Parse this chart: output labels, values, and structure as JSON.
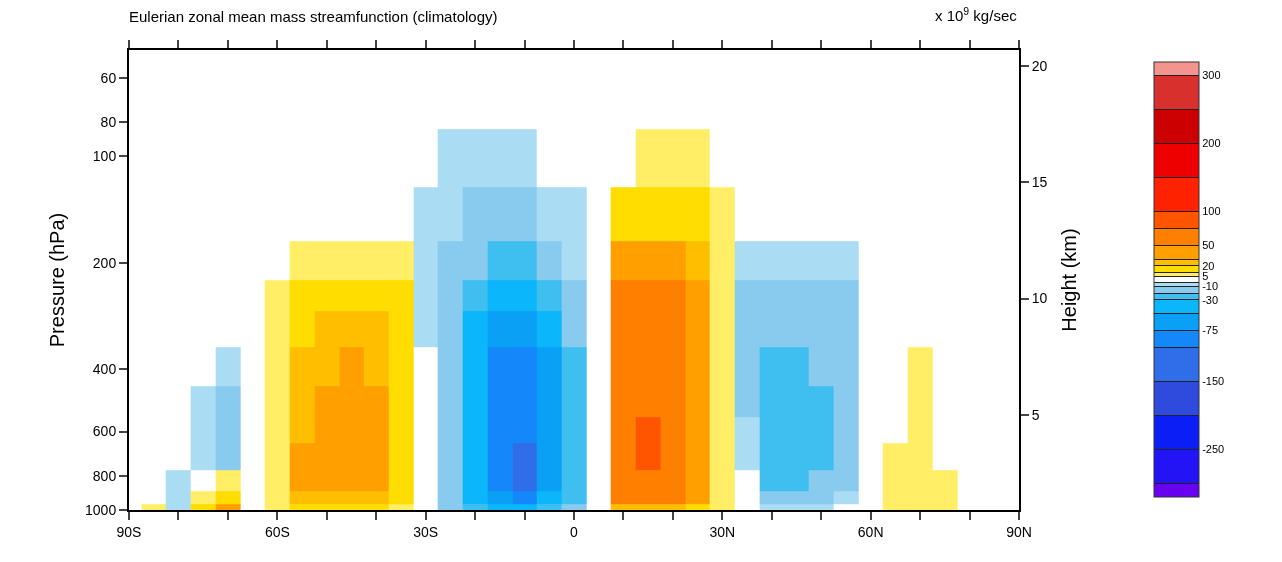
{
  "chart_data": {
    "type": "heatmap",
    "title": "Eulerian zonal mean mass streamfunction (climatology)",
    "annotations": [
      "x 10$^{9}$ kg/sec"
    ],
    "ylabel": "Pressure (hPa)",
    "y2label": "Height (km)",
    "x": [
      -90,
      -85,
      -80,
      -75,
      -70,
      -65,
      -60,
      -55,
      -50,
      -45,
      -40,
      -35,
      -30,
      -25,
      -20,
      -15,
      -10,
      -5,
      0,
      5,
      10,
      15,
      20,
      25,
      30,
      35,
      40,
      45,
      50,
      55,
      60,
      65,
      70,
      75,
      80,
      85,
      90
    ],
    "y": [
      50,
      70,
      100,
      150,
      200,
      250,
      300,
      400,
      500,
      600,
      700,
      850,
      925,
      1000
    ],
    "cells": [
      [
        0,
        0,
        0,
        0,
        0,
        0,
        0,
        0,
        0,
        0,
        0,
        0,
        0,
        0,
        0,
        0,
        0,
        0,
        0,
        0,
        0,
        0,
        0,
        0,
        0,
        0,
        0,
        0,
        0,
        0,
        0,
        0,
        0,
        0,
        0,
        0,
        0
      ],
      [
        0,
        0,
        0,
        0,
        0,
        0,
        0,
        0,
        0,
        0,
        0,
        0,
        0,
        0,
        0,
        0,
        0,
        0,
        0,
        0,
        0,
        0,
        0,
        0,
        0,
        0,
        0,
        0,
        0,
        0,
        0,
        0,
        0,
        0,
        0,
        0,
        0
      ],
      [
        0,
        0,
        0,
        0,
        0,
        0,
        0,
        0,
        0,
        0,
        0,
        0,
        0,
        -7,
        -7,
        -7,
        -7,
        0,
        0,
        0,
        0,
        7,
        7,
        7,
        0,
        0,
        0,
        0,
        0,
        0,
        0,
        0,
        0,
        0,
        0,
        0,
        0
      ],
      [
        0,
        0,
        0,
        0,
        0,
        0,
        0,
        0,
        0,
        0,
        0,
        0,
        -7,
        -7,
        -15,
        -15,
        -15,
        -7,
        -7,
        0,
        15,
        15,
        15,
        15,
        7,
        0,
        0,
        0,
        0,
        0,
        0,
        0,
        0,
        0,
        0,
        0,
        0
      ],
      [
        0,
        0,
        0,
        0,
        0,
        0,
        0,
        7,
        7,
        7,
        7,
        7,
        -7,
        -15,
        -15,
        -25,
        -25,
        -15,
        -7,
        0,
        40,
        40,
        40,
        25,
        7,
        -7,
        -7,
        -7,
        -7,
        -7,
        0,
        0,
        0,
        0,
        0,
        0,
        0
      ],
      [
        0,
        0,
        0,
        0,
        0,
        0,
        7,
        15,
        15,
        15,
        15,
        15,
        -7,
        -15,
        -25,
        -40,
        -40,
        -25,
        -15,
        0,
        60,
        60,
        60,
        40,
        7,
        -15,
        -15,
        -15,
        -15,
        -15,
        0,
        0,
        0,
        0,
        0,
        0,
        0
      ],
      [
        0,
        0,
        0,
        0,
        0,
        0,
        7,
        15,
        25,
        25,
        25,
        15,
        -7,
        -15,
        -40,
        -60,
        -60,
        -40,
        -15,
        0,
        60,
        60,
        60,
        40,
        7,
        -15,
        -15,
        -15,
        -15,
        -15,
        0,
        0,
        0,
        0,
        0,
        0,
        0
      ],
      [
        0,
        0,
        0,
        0,
        -7,
        0,
        7,
        25,
        25,
        40,
        25,
        15,
        0,
        -15,
        -40,
        -90,
        -90,
        -60,
        -25,
        0,
        60,
        60,
        60,
        40,
        7,
        -15,
        -25,
        -25,
        -15,
        -15,
        0,
        0,
        7,
        0,
        0,
        0,
        0
      ],
      [
        0,
        0,
        0,
        -7,
        -15,
        0,
        7,
        25,
        40,
        40,
        40,
        15,
        0,
        -15,
        -40,
        -90,
        -90,
        -60,
        -25,
        0,
        60,
        60,
        60,
        40,
        7,
        -15,
        -25,
        -25,
        -25,
        -15,
        0,
        0,
        7,
        0,
        0,
        0,
        0
      ],
      [
        0,
        0,
        0,
        -7,
        -15,
        0,
        7,
        25,
        40,
        40,
        40,
        15,
        0,
        -15,
        -40,
        -90,
        -90,
        -60,
        -25,
        0,
        60,
        90,
        60,
        40,
        7,
        -7,
        -25,
        -25,
        -25,
        -15,
        0,
        0,
        7,
        0,
        0,
        0,
        0
      ],
      [
        0,
        0,
        0,
        -7,
        -15,
        0,
        7,
        40,
        40,
        40,
        40,
        15,
        0,
        -15,
        -40,
        -90,
        -125,
        -60,
        -25,
        0,
        60,
        90,
        60,
        40,
        7,
        -7,
        -25,
        -25,
        -25,
        -15,
        0,
        7,
        7,
        0,
        0,
        0,
        0
      ],
      [
        0,
        0,
        -7,
        0,
        7,
        0,
        7,
        40,
        40,
        40,
        40,
        15,
        0,
        -15,
        -40,
        -90,
        -125,
        -60,
        -25,
        0,
        60,
        60,
        60,
        40,
        7,
        0,
        -25,
        -25,
        -15,
        -15,
        0,
        7,
        7,
        7,
        0,
        0,
        0
      ],
      [
        0,
        0,
        -7,
        7,
        15,
        0,
        7,
        25,
        25,
        25,
        25,
        15,
        0,
        -15,
        -40,
        -60,
        -90,
        -40,
        -25,
        0,
        60,
        60,
        60,
        40,
        7,
        0,
        -15,
        -15,
        -15,
        -7,
        0,
        7,
        7,
        7,
        0,
        0,
        0
      ],
      [
        0,
        7,
        -7,
        15,
        40,
        0,
        7,
        15,
        15,
        15,
        15,
        7,
        0,
        -15,
        -25,
        -40,
        -40,
        -25,
        -15,
        0,
        25,
        25,
        25,
        15,
        7,
        0,
        -7,
        -7,
        -7,
        0,
        0,
        7,
        7,
        7,
        0,
        0,
        0
      ]
    ],
    "colors": [
      "#6a00f0",
      "#2314f5",
      "#0a1ef5",
      "#2e4bde",
      "#2f6ee8",
      "#1487fa",
      "#0aa0f5",
      "#0cb6fa",
      "#3fbef0",
      "#88cbee",
      "#aadcf4",
      "#ffffff",
      "#ffee66",
      "#ffdd00",
      "#ffbe00",
      "#ffa000",
      "#ff7f00",
      "#ff5500",
      "#ff2200",
      "#ee0000",
      "#cc0000",
      "#d8302d",
      "#f4948f"
    ],
    "clim": [
      -320,
      320
    ],
    "cticks": [
      {
        "value": -300,
        "label": null
      },
      {
        "value": -250,
        "label": "-250"
      },
      {
        "value": -200,
        "label": null
      },
      {
        "value": -150,
        "label": "-150"
      },
      {
        "value": -100,
        "label": null
      },
      {
        "value": -75,
        "label": "-75"
      },
      {
        "value": -50,
        "label": null
      },
      {
        "value": -30,
        "label": "-30"
      },
      {
        "value": -20,
        "label": null
      },
      {
        "value": -10,
        "label": "-10"
      },
      {
        "value": -5,
        "label": null
      },
      {
        "value": 5,
        "label": "5"
      },
      {
        "value": 10,
        "label": null
      },
      {
        "value": 20,
        "label": "20"
      },
      {
        "value": 30,
        "label": null
      },
      {
        "value": 50,
        "label": "50"
      },
      {
        "value": 75,
        "label": null
      },
      {
        "value": 100,
        "label": "100"
      },
      {
        "value": 150,
        "label": null
      },
      {
        "value": 200,
        "label": "200"
      },
      {
        "value": 250,
        "label": null
      },
      {
        "value": 300,
        "label": "300"
      }
    ],
    "xlim": [
      -90,
      90
    ],
    "xticks": [
      {
        "value": -90,
        "label": "90S"
      },
      {
        "value": -80,
        "label": null
      },
      {
        "value": -70,
        "label": null
      },
      {
        "value": -60,
        "label": "60S"
      },
      {
        "value": -50,
        "label": null
      },
      {
        "value": -40,
        "label": null
      },
      {
        "value": -30,
        "label": "30S"
      },
      {
        "value": -20,
        "label": null
      },
      {
        "value": -10,
        "label": null
      },
      {
        "value": 0,
        "label": "0"
      },
      {
        "value": 10,
        "label": null
      },
      {
        "value": 20,
        "label": null
      },
      {
        "value": 30,
        "label": "30N"
      },
      {
        "value": 40,
        "label": null
      },
      {
        "value": 50,
        "label": null
      },
      {
        "value": 60,
        "label": "60N"
      },
      {
        "value": 70,
        "label": null
      },
      {
        "value": 80,
        "label": null
      },
      {
        "value": 90,
        "label": "90N"
      }
    ],
    "ylim": [
      1000,
      50
    ],
    "log": "y",
    "yticks": [
      {
        "value": 60,
        "label": "60"
      },
      {
        "value": 80,
        "label": "80"
      },
      {
        "value": 100,
        "label": "100"
      },
      {
        "value": 200,
        "label": "200"
      },
      {
        "value": 400,
        "label": "400"
      },
      {
        "value": 600,
        "label": "600"
      },
      {
        "value": 800,
        "label": "800"
      },
      {
        "value": 1000,
        "label": "1000"
      }
    ],
    "y2lim": [
      0.9,
      20.7
    ],
    "y2ticks": [
      5,
      10,
      15,
      20
    ]
  }
}
